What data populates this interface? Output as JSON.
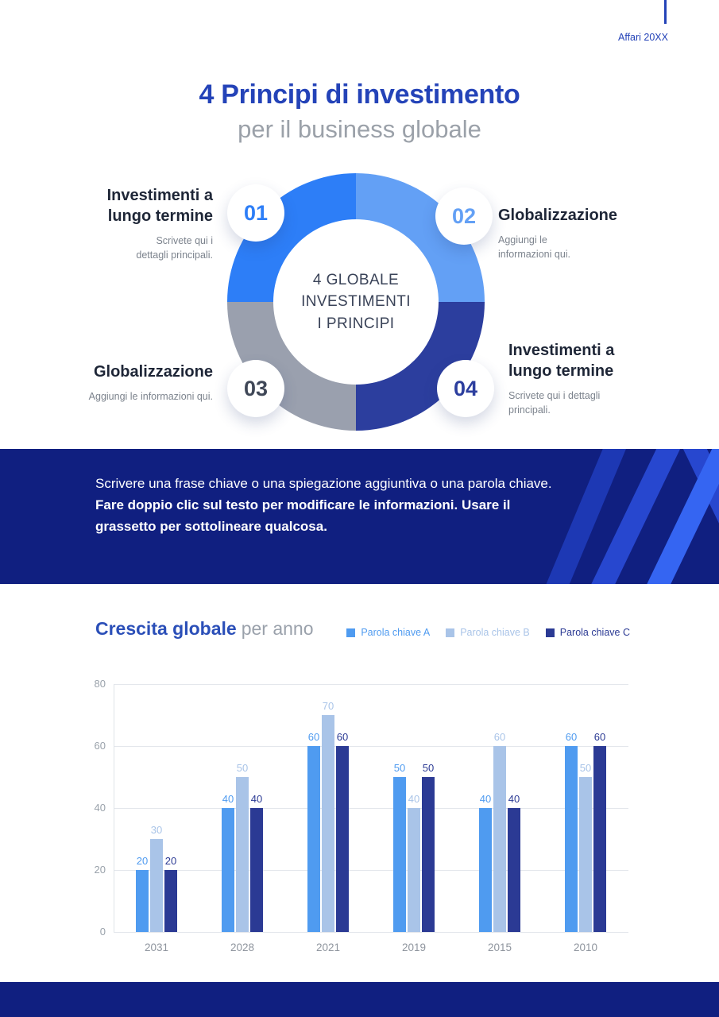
{
  "page": {
    "brand": "Affari 20XX",
    "title": "4 Principi di investimento",
    "subtitle": "per il business globale",
    "accent_color": "#2443b8",
    "footer_color": "#101f80"
  },
  "diagram": {
    "center_lines": [
      "4 GLOBALE",
      "INVESTIMENTI",
      "I PRINCIPI"
    ],
    "segment_colors": {
      "top_left": "#2d7ef7",
      "top_right": "#63a0f5",
      "bottom_right": "#2c3e9e",
      "bottom_left": "#9aa0ae"
    },
    "items": [
      {
        "number": "01",
        "title": "Investimenti a lungo termine",
        "description": "Scrivete qui i dettagli principali.",
        "color": "#2d7ef7"
      },
      {
        "number": "02",
        "title": "Globalizzazione",
        "description": "Aggiungi le informazioni qui.",
        "color": "#63a0f5"
      },
      {
        "number": "03",
        "title": "Globalizzazione",
        "description": "Aggiungi le informazioni qui.",
        "color": "#3f4757"
      },
      {
        "number": "04",
        "title": "Investimenti a lungo termine",
        "description": "Scrivete qui i dettagli principali.",
        "color": "#2c3e9e"
      }
    ]
  },
  "banner": {
    "background_color": "#101f80",
    "text_regular": "Scrivere una frase chiave o una spiegazione aggiuntiva o una parola chiave.",
    "text_bold": "Fare doppio clic sul testo per modificare le informazioni. Usare il grassetto per sottolineare qualcosa."
  },
  "chart_data": {
    "type": "bar",
    "title": "Crescita globale",
    "title_suffix": "per anno",
    "categories": [
      "2031",
      "2028",
      "2021",
      "2019",
      "2015",
      "2010"
    ],
    "series": [
      {
        "name": "Parola chiave A",
        "color": "#4f9bf0",
        "values": [
          20,
          40,
          60,
          50,
          40,
          60
        ]
      },
      {
        "name": "Parola chiave B",
        "color": "#a9c4e8",
        "values": [
          30,
          50,
          70,
          40,
          60,
          50
        ]
      },
      {
        "name": "Parola chiave C",
        "color": "#2b3a94",
        "values": [
          20,
          40,
          60,
          50,
          40,
          60
        ]
      }
    ],
    "ylim": [
      0,
      80
    ],
    "yticks": [
      0,
      20,
      40,
      60,
      80
    ],
    "grid": true,
    "legend_position": "top-right"
  }
}
